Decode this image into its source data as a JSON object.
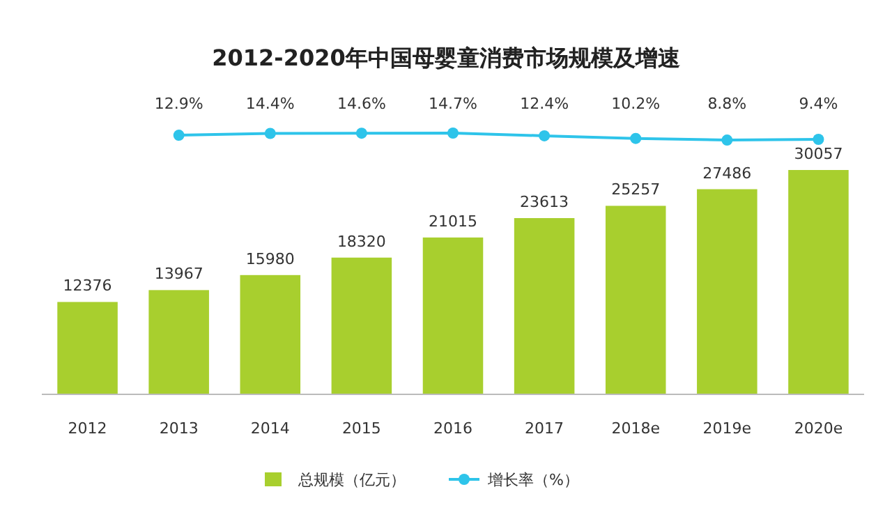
{
  "chart_data": [
    {
      "type": "bar",
      "categories": [
        "2012",
        "2013",
        "2014",
        "2015",
        "2016",
        "2017",
        "2018e",
        "2019e",
        "2020e"
      ],
      "series": [
        {
          "name": "总规模（亿元）",
          "color": "#a8cf2e",
          "values": [
            12376,
            13967,
            15980,
            18320,
            21015,
            23613,
            25257,
            27486,
            30057
          ]
        }
      ],
      "data_labels": true,
      "legend": "bottom"
    },
    {
      "type": "line",
      "title": "2012-2020年中国母婴童消费市场规模及增速",
      "categories": [
        null,
        null,
        null,
        null,
        null,
        null,
        null,
        null,
        null
      ],
      "series": [
        {
          "name": "增长率（%）",
          "color": "#2ec4ea",
          "values": [
            null,
            12.9,
            14.4,
            14.6,
            14.7,
            12.4,
            10.2,
            8.8,
            9.4
          ],
          "value_labels": [
            null,
            "12.9%",
            "14.4%",
            "14.6%",
            "14.7%",
            "12.4%",
            "10.2%",
            "8.8%",
            "9.4%"
          ]
        }
      ],
      "marker": "circle",
      "legend": "bottom"
    }
  ]
}
